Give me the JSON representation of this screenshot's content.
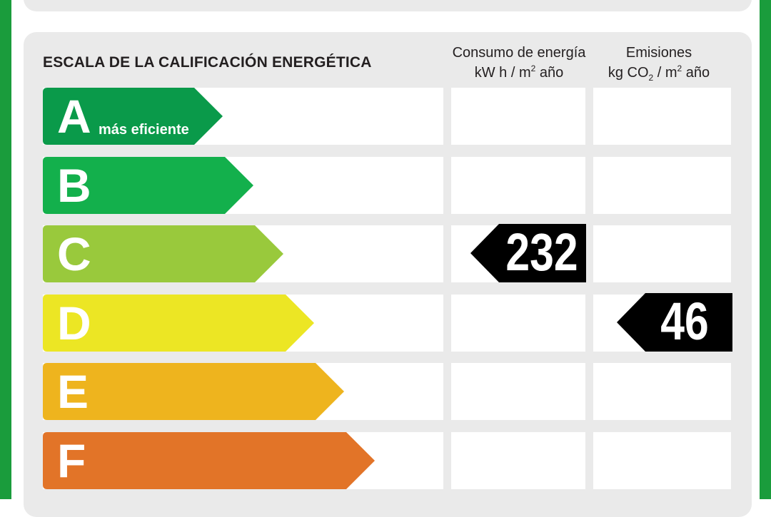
{
  "heading": "ESCALA DE LA CALIFICACIÓN ENERGÉTICA",
  "columns": {
    "consumo": {
      "line1": "Consumo de energía",
      "unit_a": "kW h  / m",
      "unit_sup": "2",
      "unit_b": " año"
    },
    "emisiones": {
      "line1": "Emisiones",
      "unit_a": "kg CO",
      "unit_sub": "2",
      "unit_mid": "  / m",
      "unit_sup": "2",
      "unit_b": " año"
    }
  },
  "scale": [
    {
      "letter": "A",
      "sublabel": "más eficiente",
      "color": "#0a9a4a"
    },
    {
      "letter": "B",
      "sublabel": "",
      "color": "#13b04c"
    },
    {
      "letter": "C",
      "sublabel": "",
      "color": "#99c93c"
    },
    {
      "letter": "D",
      "sublabel": "",
      "color": "#ece624"
    },
    {
      "letter": "E",
      "sublabel": "",
      "color": "#eeb41e"
    },
    {
      "letter": "F",
      "sublabel": "",
      "color": "#e27428"
    }
  ],
  "rating": {
    "consumo": {
      "value": "232",
      "class": "C"
    },
    "emisiones": {
      "value": "46",
      "class": "D"
    }
  },
  "colors": {
    "frame": "#1a9c3c",
    "panel": "#eaeaea",
    "marker": "#000000"
  }
}
